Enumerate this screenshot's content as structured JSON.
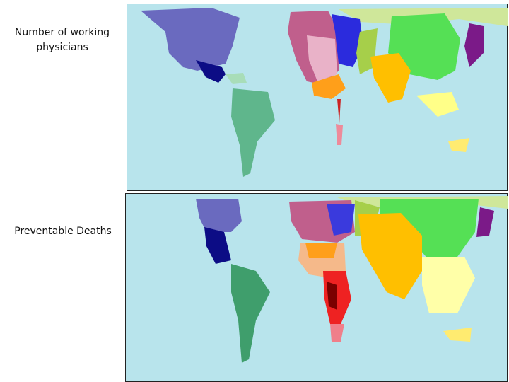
{
  "panels": [
    {
      "label": "Number of working physicians"
    },
    {
      "label": "Preventable Deaths"
    }
  ]
}
